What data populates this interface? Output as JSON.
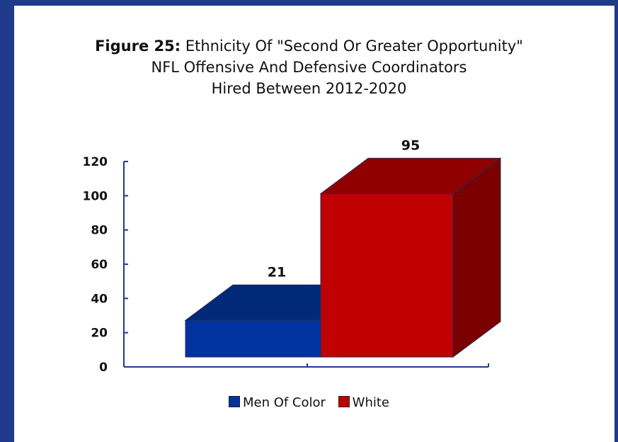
{
  "chart_data": {
    "type": "bar",
    "title_prefix": "Figure 25:",
    "title_lines": [
      "Ethnicity Of \"Second Or Greater Opportunity\"",
      "NFL Offensive And Defensive Coordinators",
      "Hired Between 2012-2020"
    ],
    "categories": [
      "Men Of Color",
      "White"
    ],
    "values": [
      21,
      95
    ],
    "ylim": [
      0,
      120
    ],
    "yticks": [
      0,
      20,
      40,
      60,
      80,
      100,
      120
    ],
    "legend": {
      "placement": "bottom"
    },
    "colors": {
      "Men Of Color": {
        "front": "#0033a0",
        "top": "#002a78",
        "side": "#001f5e"
      },
      "White": {
        "front": "#c00000",
        "top": "#900000",
        "side": "#7a0000"
      }
    }
  }
}
